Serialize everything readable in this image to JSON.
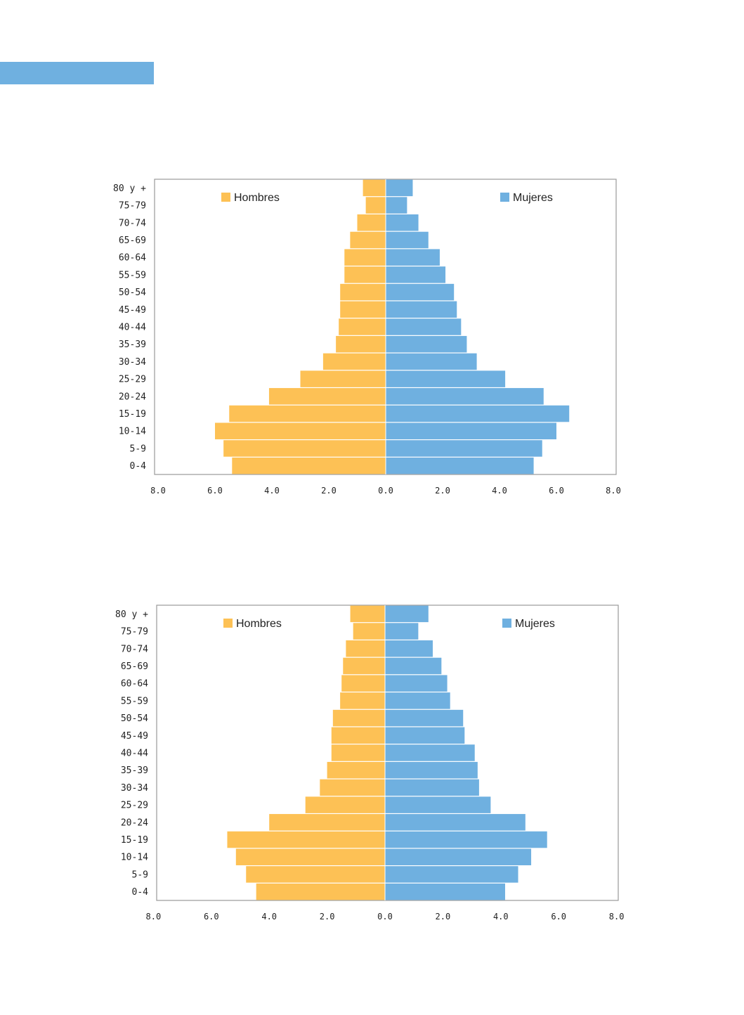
{
  "page": {
    "header_bar_color": "#6fb0e0"
  },
  "chart_data": [
    {
      "type": "bar",
      "orientation": "horizontal",
      "layout": "population-pyramid",
      "categories": [
        "0-4",
        "5-9",
        "10-14",
        "15-19",
        "20-24",
        "25-29",
        "30-34",
        "35-39",
        "40-44",
        "45-49",
        "50-54",
        "55-59",
        "60-64",
        "65-69",
        "70-74",
        "75-79",
        "80 y +"
      ],
      "series": [
        {
          "name": "Hombres",
          "color": "#fdc155",
          "side": "left",
          "values": [
            5.4,
            5.7,
            6.0,
            5.5,
            4.1,
            3.0,
            2.2,
            1.75,
            1.65,
            1.6,
            1.6,
            1.45,
            1.45,
            1.25,
            1.0,
            0.7,
            0.8
          ]
        },
        {
          "name": "Mujeres",
          "color": "#6fb0e0",
          "side": "right",
          "values": [
            5.2,
            5.5,
            6.0,
            6.45,
            5.55,
            4.2,
            3.2,
            2.85,
            2.65,
            2.5,
            2.4,
            2.1,
            1.9,
            1.5,
            1.15,
            0.75,
            0.95
          ]
        }
      ],
      "x_ticks": [
        "8.0",
        "6.0",
        "4.0",
        "2.0",
        "0.0",
        "2.0",
        "4.0",
        "6.0",
        "8.0"
      ],
      "xlim": [
        -8,
        8
      ],
      "title": "",
      "xlabel": "",
      "ylabel": "",
      "grid": false,
      "legend": [
        "top-left: Hombres",
        "top-right: Mujeres"
      ]
    },
    {
      "type": "bar",
      "orientation": "horizontal",
      "layout": "population-pyramid",
      "categories": [
        "0-4",
        "5-9",
        "10-14",
        "15-19",
        "20-24",
        "25-29",
        "30-34",
        "35-39",
        "40-44",
        "45-49",
        "50-54",
        "55-59",
        "60-64",
        "65-69",
        "70-74",
        "75-79",
        "80 y +"
      ],
      "series": [
        {
          "name": "Hombres",
          "color": "#fdc155",
          "side": "left",
          "values": [
            4.45,
            4.8,
            5.15,
            5.45,
            4.0,
            2.75,
            2.25,
            2.0,
            1.85,
            1.85,
            1.8,
            1.55,
            1.5,
            1.45,
            1.35,
            1.1,
            1.2
          ]
        },
        {
          "name": "Mujeres",
          "color": "#6fb0e0",
          "side": "right",
          "values": [
            4.15,
            4.6,
            5.05,
            5.6,
            4.85,
            3.65,
            3.25,
            3.2,
            3.1,
            2.75,
            2.7,
            2.25,
            2.15,
            1.95,
            1.65,
            1.15,
            1.5
          ]
        }
      ],
      "x_ticks": [
        "8.0",
        "6.0",
        "4.0",
        "2.0",
        "0.0",
        "2.0",
        "4.0",
        "6.0",
        "8.0"
      ],
      "xlim": [
        -8,
        8
      ],
      "title": "",
      "xlabel": "",
      "ylabel": "",
      "grid": false,
      "legend": [
        "top-left: Hombres",
        "top-right: Mujeres"
      ]
    }
  ]
}
